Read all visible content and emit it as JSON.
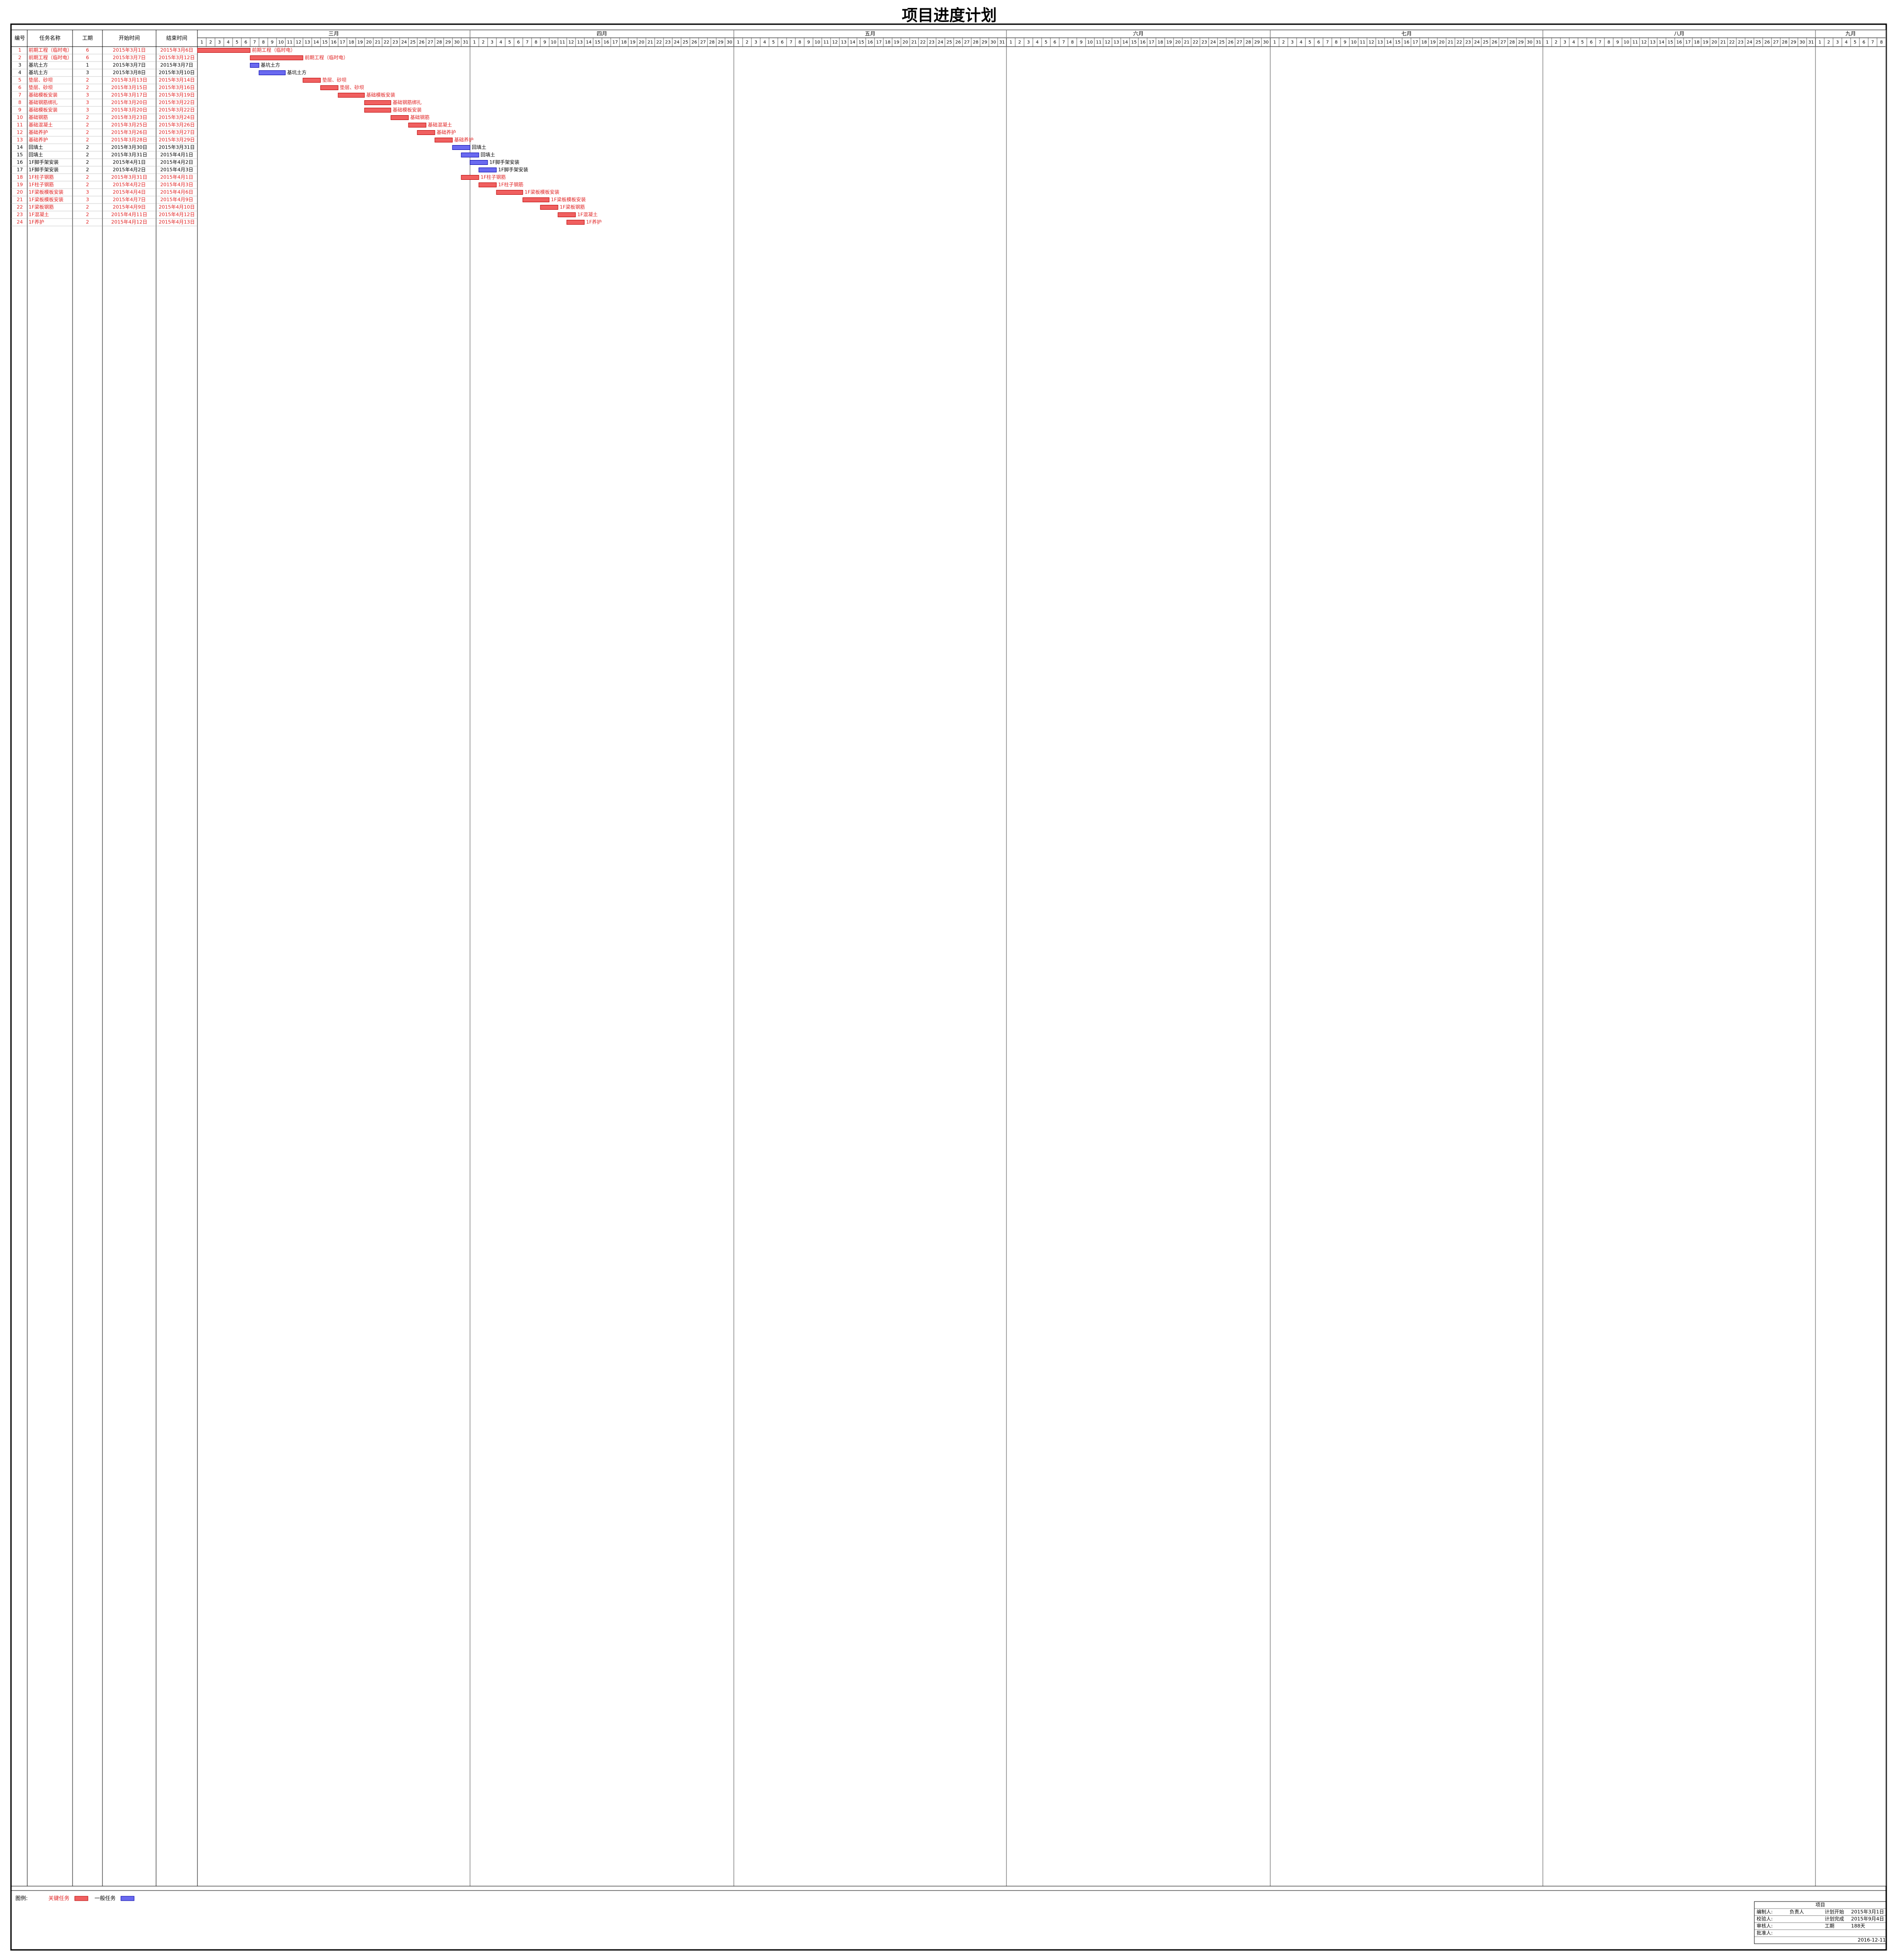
{
  "title": "项目进度计划",
  "columns": [
    "编号",
    "任务名称",
    "工期",
    "开始时间",
    "结束时间"
  ],
  "timeline": {
    "months": [
      {
        "label": "三月",
        "days": [
          1,
          2,
          3,
          4,
          5,
          6,
          7,
          8,
          9,
          10,
          11,
          12,
          13,
          14,
          15,
          16,
          17,
          18,
          19,
          20,
          21,
          22,
          23,
          24,
          25,
          26,
          27,
          28,
          29,
          30,
          31
        ]
      },
      {
        "label": "四月",
        "days": [
          1,
          2,
          3,
          4,
          5,
          6,
          7,
          8,
          9,
          10,
          11,
          12,
          13,
          14,
          15,
          16,
          17,
          18,
          19,
          20,
          21,
          22,
          23,
          24,
          25,
          26,
          27,
          28,
          29,
          30
        ]
      },
      {
        "label": "五月",
        "days": [
          1,
          2,
          3,
          4,
          5,
          6,
          7,
          8,
          9,
          10,
          11,
          12,
          13,
          14,
          15,
          16,
          17,
          18,
          19,
          20,
          21,
          22,
          23,
          24,
          25,
          26,
          27,
          28,
          29,
          30,
          31
        ]
      },
      {
        "label": "六月",
        "days": [
          1,
          2,
          3,
          4,
          5,
          6,
          7,
          8,
          9,
          10,
          11,
          12,
          13,
          14,
          15,
          16,
          17,
          18,
          19,
          20,
          21,
          22,
          23,
          24,
          25,
          26,
          27,
          28,
          29,
          30
        ]
      },
      {
        "label": "七月",
        "days": [
          1,
          2,
          3,
          4,
          5,
          6,
          7,
          8,
          9,
          10,
          11,
          12,
          13,
          14,
          15,
          16,
          17,
          18,
          19,
          20,
          21,
          22,
          23,
          24,
          25,
          26,
          27,
          28,
          29,
          30,
          31
        ]
      },
      {
        "label": "八月",
        "days": [
          1,
          2,
          3,
          4,
          5,
          6,
          7,
          8,
          9,
          10,
          11,
          12,
          13,
          14,
          15,
          16,
          17,
          18,
          19,
          20,
          21,
          22,
          23,
          24,
          25,
          26,
          27,
          28,
          29,
          30,
          31
        ]
      },
      {
        "label": "九月",
        "days": [
          1,
          2,
          3,
          4,
          5,
          6,
          7,
          8
        ]
      }
    ]
  },
  "rows": [
    {
      "id": 1,
      "name": "前期工程（临时电）",
      "duration": 6,
      "start": "2015年3月1日",
      "end": "2015年3月6日",
      "critical": true
    },
    {
      "id": 2,
      "name": "前期工程（临时电）",
      "duration": 6,
      "start": "2015年3月7日",
      "end": "2015年3月12日",
      "critical": true
    },
    {
      "id": 3,
      "name": "基坑土方",
      "duration": 1,
      "start": "2015年3月7日",
      "end": "2015年3月7日",
      "critical": false
    },
    {
      "id": 4,
      "name": "基坑土方",
      "duration": 3,
      "start": "2015年3月8日",
      "end": "2015年3月10日",
      "critical": false
    },
    {
      "id": 5,
      "name": "垫层、砂坝",
      "duration": 2,
      "start": "2015年3月13日",
      "end": "2015年3月14日",
      "critical": true
    },
    {
      "id": 6,
      "name": "垫层、砂坝",
      "duration": 2,
      "start": "2015年3月15日",
      "end": "2015年3月16日",
      "critical": true
    },
    {
      "id": 7,
      "name": "基础模板安装",
      "duration": 3,
      "start": "2015年3月17日",
      "end": "2015年3月19日",
      "critical": true
    },
    {
      "id": 8,
      "name": "基础钢筋绑扎",
      "duration": 3,
      "start": "2015年3月20日",
      "end": "2015年3月22日",
      "critical": true
    },
    {
      "id": 9,
      "name": "基础模板安装",
      "duration": 3,
      "start": "2015年3月20日",
      "end": "2015年3月22日",
      "critical": true
    },
    {
      "id": 10,
      "name": "基础钢筋",
      "duration": 2,
      "start": "2015年3月23日",
      "end": "2015年3月24日",
      "critical": true
    },
    {
      "id": 11,
      "name": "基础混凝土",
      "duration": 2,
      "start": "2015年3月25日",
      "end": "2015年3月26日",
      "critical": true
    },
    {
      "id": 12,
      "name": "基础养护",
      "duration": 2,
      "start": "2015年3月26日",
      "end": "2015年3月27日",
      "critical": true
    },
    {
      "id": 13,
      "name": "基础养护",
      "duration": 2,
      "start": "2015年3月28日",
      "end": "2015年3月29日",
      "critical": true
    },
    {
      "id": 14,
      "name": "回填土",
      "duration": 2,
      "start": "2015年3月30日",
      "end": "2015年3月31日",
      "critical": false
    },
    {
      "id": 15,
      "name": "回填土",
      "duration": 2,
      "start": "2015年3月31日",
      "end": "2015年4月1日",
      "critical": false
    },
    {
      "id": 16,
      "name": "1F脚手架安装",
      "duration": 2,
      "start": "2015年4月1日",
      "end": "2015年4月2日",
      "critical": false
    },
    {
      "id": 17,
      "name": "1F脚手架安装",
      "duration": 2,
      "start": "2015年4月2日",
      "end": "2015年4月3日",
      "critical": false
    },
    {
      "id": 18,
      "name": "1F柱子钢筋",
      "duration": 2,
      "start": "2015年3月31日",
      "end": "2015年4月1日",
      "critical": true
    },
    {
      "id": 19,
      "name": "1F柱子钢筋",
      "duration": 2,
      "start": "2015年4月2日",
      "end": "2015年4月3日",
      "critical": true
    },
    {
      "id": 20,
      "name": "1F梁板模板安装",
      "duration": 3,
      "start": "2015年4月4日",
      "end": "2015年4月6日",
      "critical": true
    },
    {
      "id": 21,
      "name": "1F梁板模板安装",
      "duration": 3,
      "start": "2015年4月7日",
      "end": "2015年4月9日",
      "critical": true
    },
    {
      "id": 22,
      "name": "1F梁板钢筋",
      "duration": 2,
      "start": "2015年4月9日",
      "end": "2015年4月10日",
      "critical": true
    },
    {
      "id": 23,
      "name": "1F混凝土",
      "duration": 2,
      "start": "2015年4月11日",
      "end": "2015年4月12日",
      "critical": true
    },
    {
      "id": 24,
      "name": "1F养护",
      "duration": 2,
      "start": "2015年4月12日",
      "end": "2015年4月13日",
      "critical": true
    }
  ],
  "legend": {
    "label": "图例:",
    "critical": "关键任务",
    "normal": "一般任务"
  },
  "footer": {
    "header": "项目",
    "rows": [
      {
        "label": "编制人:",
        "value": "负责人",
        "key": "计划开始",
        "date": "2015年3月1日"
      },
      {
        "label": "校验人:",
        "key": "计划完成",
        "date": "2015年9月4日"
      },
      {
        "label": "审核人:",
        "key": "工期",
        "date": "188天"
      },
      {
        "label": "批准人:"
      }
    ],
    "printed": "2016-12-11"
  }
}
